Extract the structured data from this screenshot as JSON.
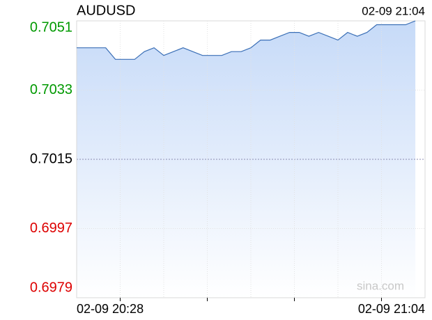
{
  "chart_data": {
    "type": "area",
    "title": "AUDUSD",
    "timestamp": "02-09 21:04",
    "watermark": "sina.com",
    "x": [
      "02-09 20:28",
      "02-09 20:29",
      "02-09 20:30",
      "02-09 20:31",
      "02-09 20:32",
      "02-09 20:33",
      "02-09 20:34",
      "02-09 20:35",
      "02-09 20:36",
      "02-09 20:37",
      "02-09 20:38",
      "02-09 20:39",
      "02-09 20:40",
      "02-09 20:41",
      "02-09 20:42",
      "02-09 20:43",
      "02-09 20:44",
      "02-09 20:45",
      "02-09 20:46",
      "02-09 20:47",
      "02-09 20:48",
      "02-09 20:49",
      "02-09 20:50",
      "02-09 20:51",
      "02-09 20:52",
      "02-09 20:53",
      "02-09 20:54",
      "02-09 20:55",
      "02-09 20:56",
      "02-09 20:57",
      "02-09 20:58",
      "02-09 20:59",
      "02-09 21:00",
      "02-09 21:01",
      "02-09 21:02",
      "02-09 21:03"
    ],
    "values": [
      0.7044,
      0.7044,
      0.7044,
      0.7044,
      0.7041,
      0.7041,
      0.7041,
      0.7043,
      0.7044,
      0.7042,
      0.7043,
      0.7044,
      0.7043,
      0.7042,
      0.7042,
      0.7042,
      0.7043,
      0.7043,
      0.7044,
      0.7046,
      0.7046,
      0.7047,
      0.7048,
      0.7048,
      0.7047,
      0.7048,
      0.7047,
      0.7046,
      0.7048,
      0.7047,
      0.7048,
      0.705,
      0.705,
      0.705,
      0.705,
      0.7051
    ],
    "color": "#3b6fb6",
    "fill_color": "#c6daf8",
    "xticks": [
      "02-09 20:28",
      "02-09 21:04"
    ],
    "ylim": [
      0.6979,
      0.7051
    ],
    "yticks": [
      0.6979,
      0.6997,
      0.7015,
      0.7033,
      0.7051
    ],
    "baseline": 0.7015,
    "up_color": "#009900",
    "down_color": "#dd0000",
    "flat_color": "#000000",
    "grid": true
  }
}
